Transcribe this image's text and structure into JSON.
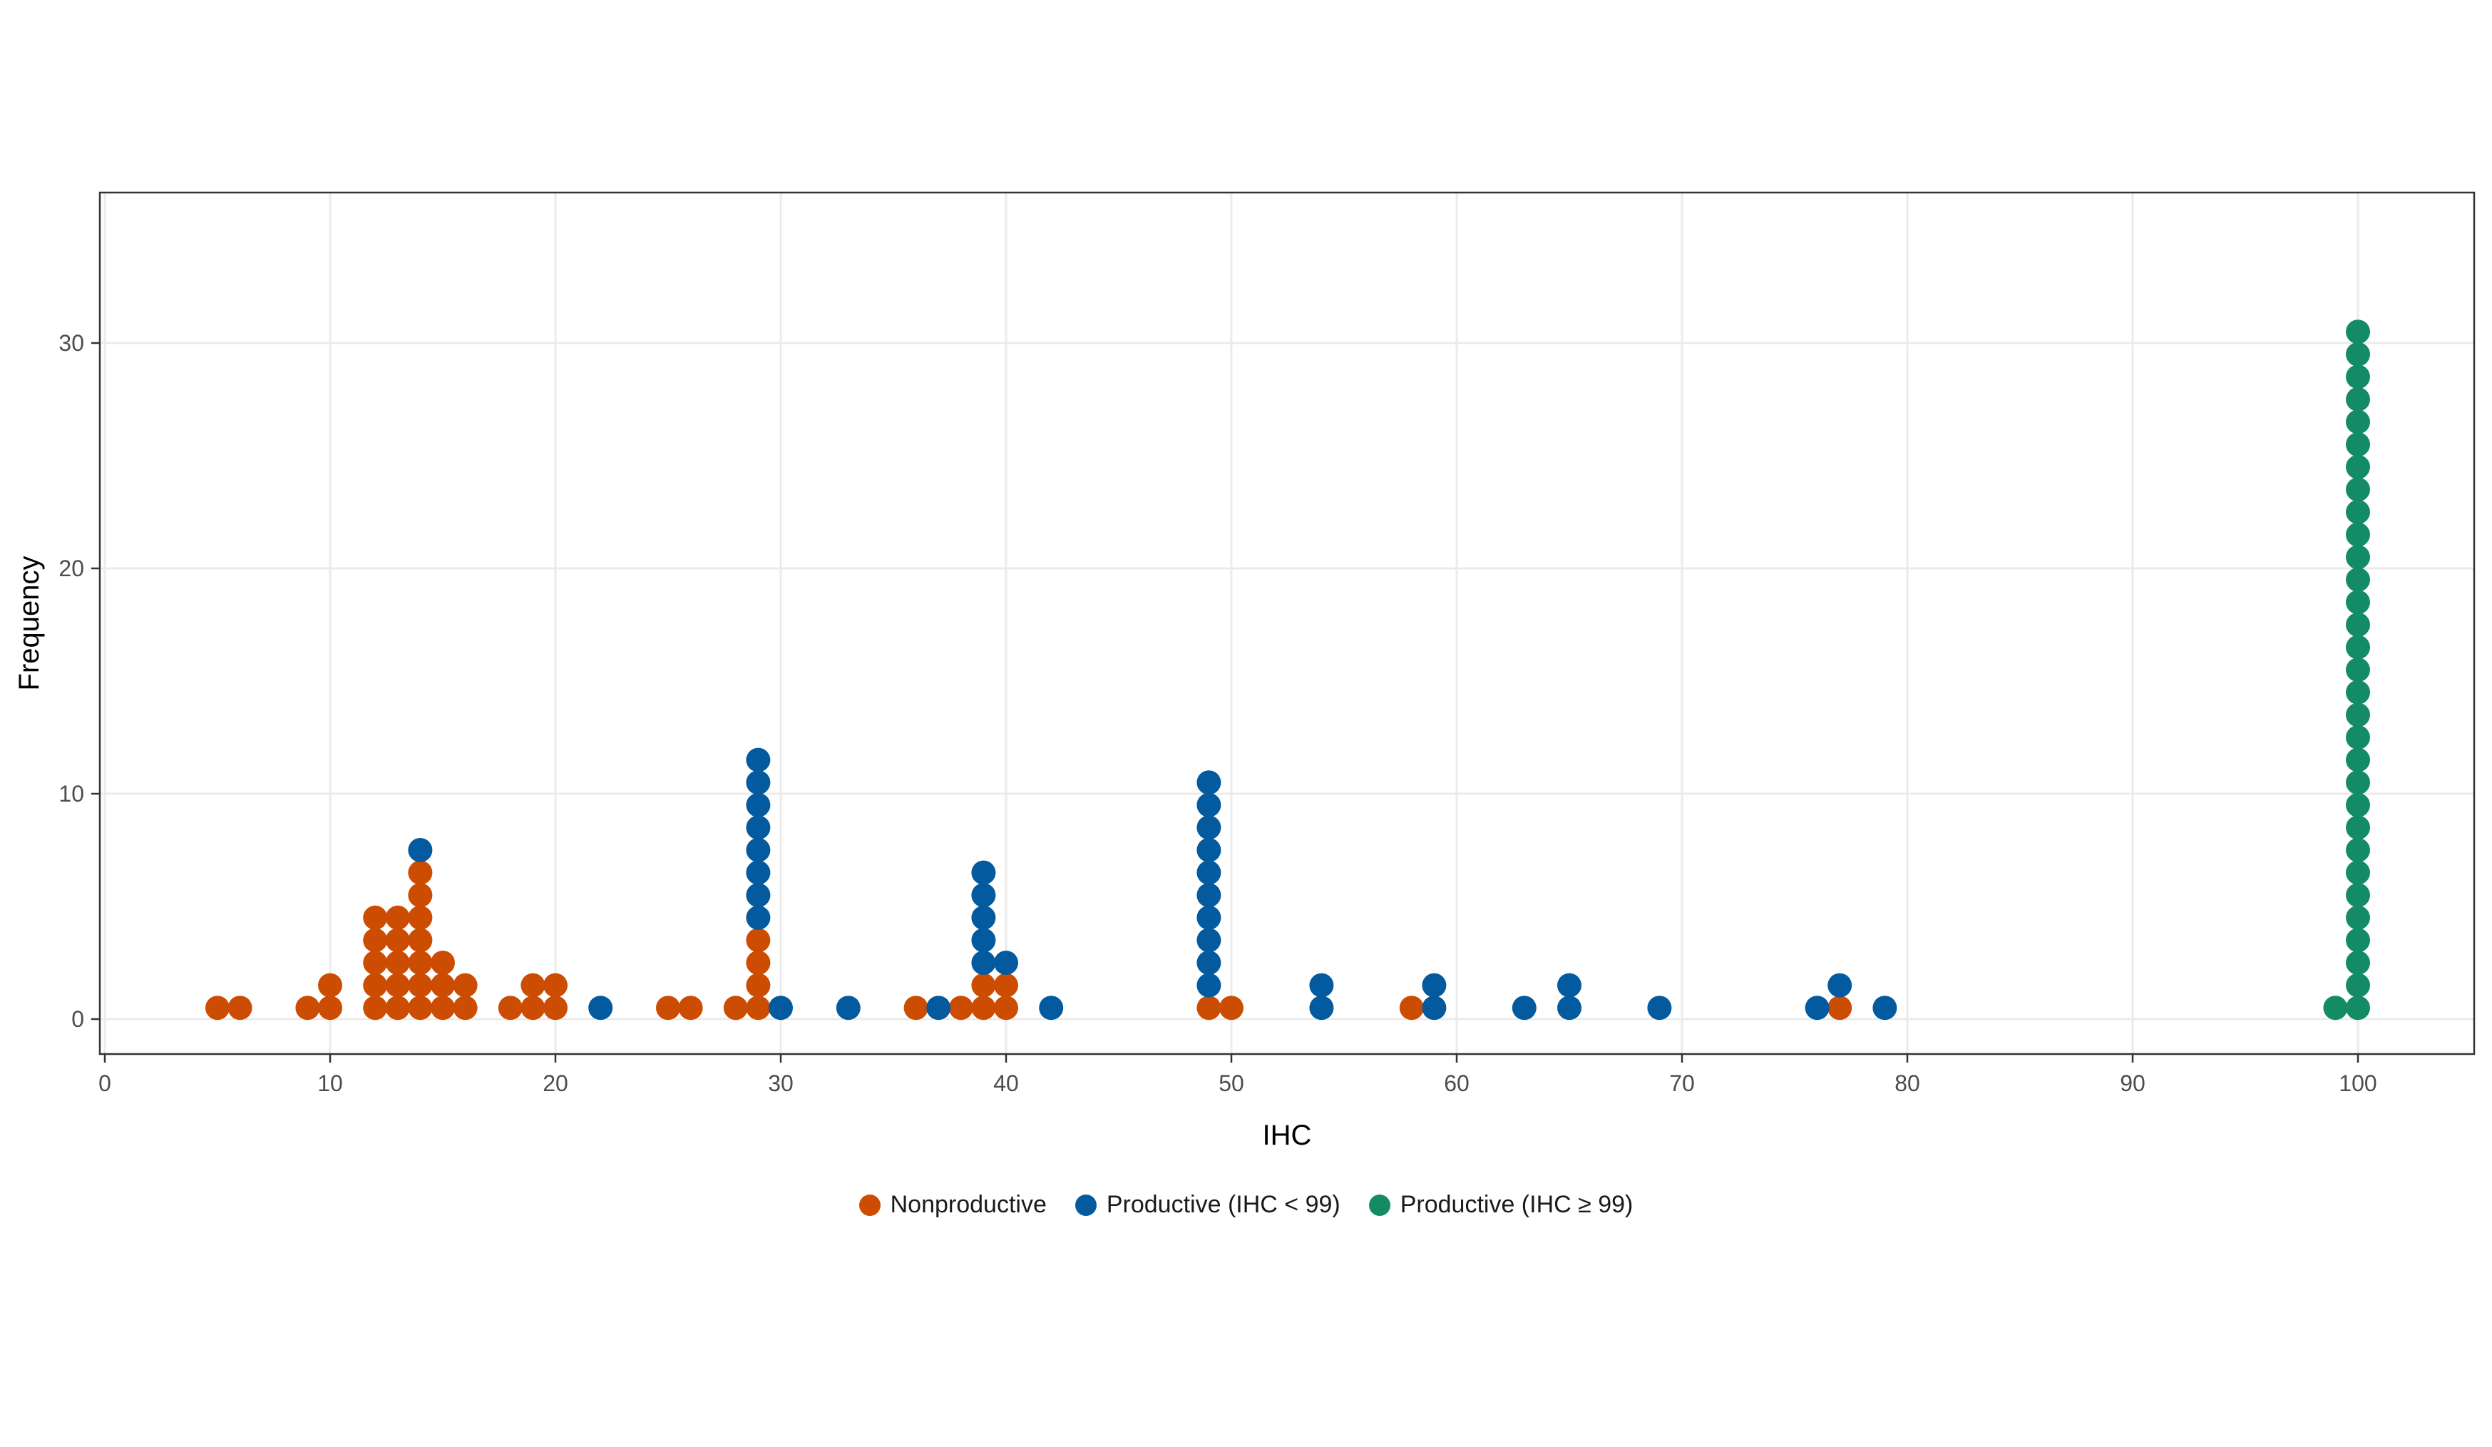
{
  "chart_data": {
    "type": "scatter",
    "subtype": "dotplot",
    "xlabel": "IHC",
    "ylabel": "Frequency",
    "xlim": [
      0,
      100
    ],
    "ylim": [
      0,
      35
    ],
    "xticks": [
      0,
      10,
      20,
      30,
      40,
      50,
      60,
      70,
      80,
      90,
      100
    ],
    "yticks": [
      0,
      10,
      20,
      30
    ],
    "grid": true,
    "legend_position": "bottom",
    "series": [
      {
        "name": "Nonproductive",
        "color": "#cc4c02",
        "x_counts": [
          [
            5,
            1
          ],
          [
            6,
            1
          ],
          [
            9,
            1
          ],
          [
            10,
            2
          ],
          [
            12,
            5
          ],
          [
            13,
            5
          ],
          [
            14,
            7
          ],
          [
            15,
            3
          ],
          [
            16,
            2
          ],
          [
            18,
            1
          ],
          [
            19,
            2
          ],
          [
            20,
            2
          ],
          [
            25,
            1
          ],
          [
            26,
            1
          ],
          [
            28,
            1
          ],
          [
            29,
            4
          ],
          [
            36,
            1
          ],
          [
            38,
            1
          ],
          [
            39,
            2
          ],
          [
            40,
            2
          ],
          [
            49,
            1
          ],
          [
            50,
            1
          ],
          [
            58,
            1
          ],
          [
            77,
            1
          ]
        ]
      },
      {
        "name": "Productive (IHC < 99)",
        "color": "#045a9e",
        "x_counts": [
          [
            14,
            1
          ],
          [
            22,
            1
          ],
          [
            29,
            8
          ],
          [
            30,
            1
          ],
          [
            33,
            1
          ],
          [
            37,
            1
          ],
          [
            39,
            5
          ],
          [
            40,
            1
          ],
          [
            42,
            1
          ],
          [
            49,
            10
          ],
          [
            54,
            2
          ],
          [
            59,
            2
          ],
          [
            63,
            1
          ],
          [
            65,
            2
          ],
          [
            69,
            1
          ],
          [
            76,
            1
          ],
          [
            77,
            1
          ],
          [
            79,
            1
          ]
        ]
      },
      {
        "name": "Productive (IHC ≥ 99)",
        "color": "#138c65",
        "x_counts": [
          [
            99,
            1
          ],
          [
            100,
            31
          ]
        ]
      }
    ]
  }
}
